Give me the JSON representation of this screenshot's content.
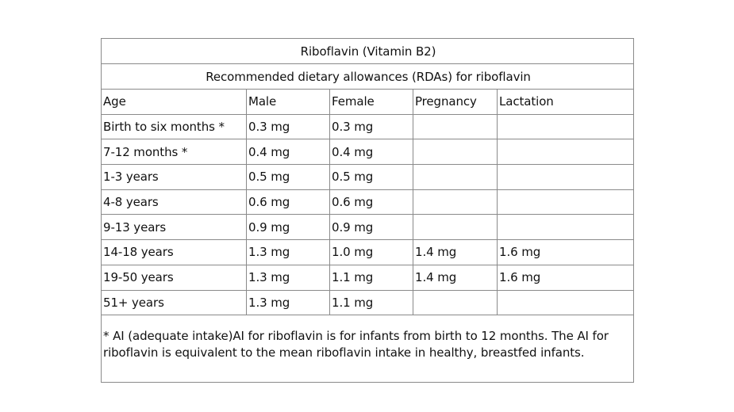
{
  "table": {
    "title": "Riboflavin (Vitamin B2)",
    "subtitle": "Recommended dietary allowances (RDAs) for riboflavin",
    "headers": [
      "Age",
      "Male",
      "Female",
      "Pregnancy",
      "Lactation"
    ],
    "rows": [
      [
        "Birth to six months *",
        "0.3 mg",
        "0.3 mg",
        "",
        ""
      ],
      [
        "7-12 months *",
        "0.4 mg",
        "0.4 mg",
        "",
        ""
      ],
      [
        "1-3 years",
        "0.5 mg",
        "0.5 mg",
        "",
        ""
      ],
      [
        "4-8 years",
        "0.6 mg",
        "0.6 mg",
        "",
        ""
      ],
      [
        "9-13 years",
        "0.9 mg",
        "0.9 mg",
        "",
        ""
      ],
      [
        "14-18 years",
        "1.3 mg",
        "1.0 mg",
        "1.4 mg",
        "1.6 mg"
      ],
      [
        "19-50 years",
        "1.3 mg",
        "1.1 mg",
        "1.4 mg",
        "1.6 mg"
      ],
      [
        "51+ years",
        "1.3 mg",
        "1.1 mg",
        "",
        ""
      ]
    ],
    "footnote": "* AI (adequate intake)AI for riboflavin is for infants from birth to 12 months. The AI for riboflavin is equivalent to the mean riboflavin intake in healthy, breastfed infants."
  }
}
